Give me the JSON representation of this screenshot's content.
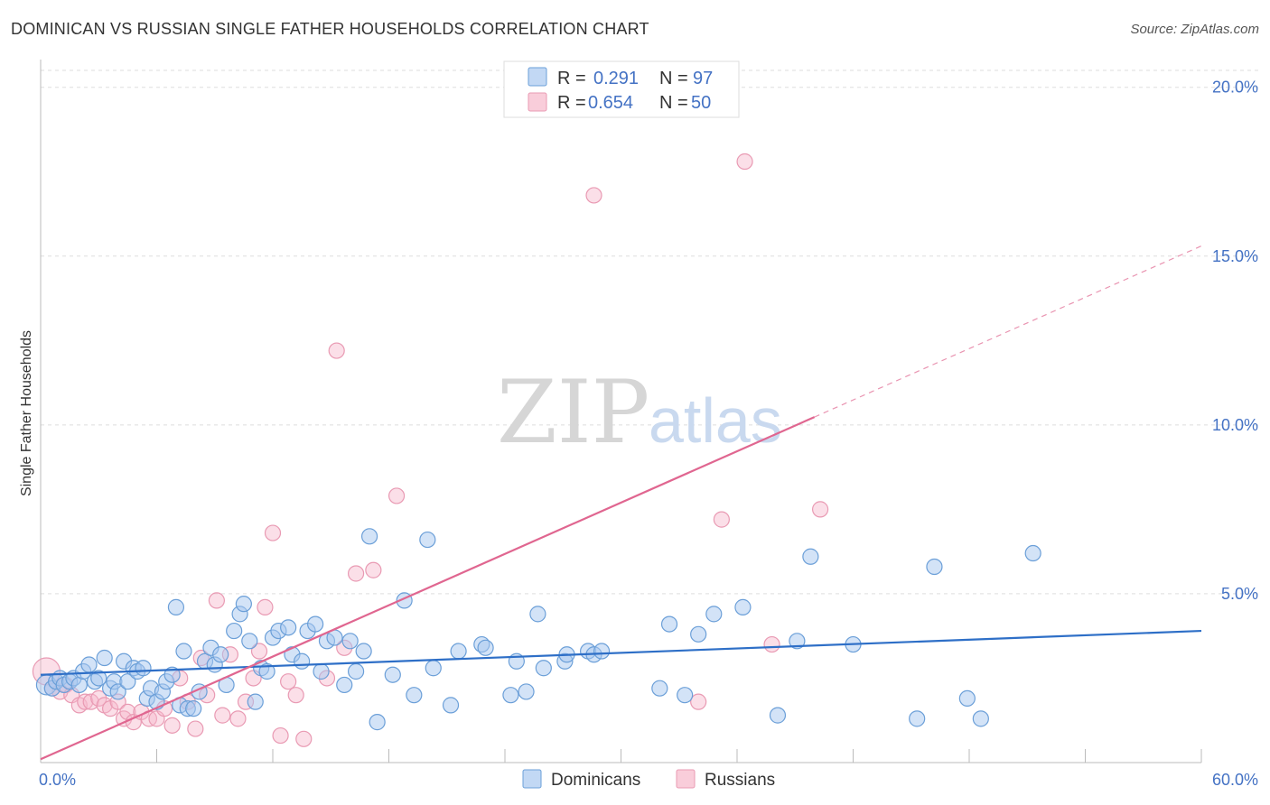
{
  "title": "DOMINICAN VS RUSSIAN SINGLE FATHER HOUSEHOLDS CORRELATION CHART",
  "source": "Source: ZipAtlas.com",
  "colors": {
    "dominicans_fill": "#a8c8f0",
    "dominicans_stroke": "#6b9fd8",
    "dominicans_line": "#2e6fc7",
    "russians_fill": "#f6b8cb",
    "russians_stroke": "#e99ab3",
    "russians_line": "#e06690",
    "grid": "#dddddd",
    "axis_text": "#4472c4"
  },
  "legend": {
    "r_label": "R =",
    "n_label": "N =",
    "dominicans": {
      "r": "0.291",
      "n": "97"
    },
    "russians": {
      "r": "0.654",
      "n": "50"
    }
  },
  "watermark": {
    "zip": "ZIP",
    "atlas": "atlas"
  },
  "chart_data": {
    "type": "scatter",
    "xlabel": "",
    "ylabel": "Single Father Households",
    "xlim": [
      0,
      60
    ],
    "ylim": [
      0,
      20.5
    ],
    "x_tick_labels": [
      {
        "value": 0,
        "label": "0.0%"
      },
      {
        "value": 60,
        "label": "60.0%"
      }
    ],
    "y_tick_labels": [
      {
        "value": 5,
        "label": "5.0%"
      },
      {
        "value": 10,
        "label": "10.0%"
      },
      {
        "value": 15,
        "label": "15.0%"
      },
      {
        "value": 20,
        "label": "20.0%"
      }
    ],
    "series": [
      {
        "name": "Dominicans",
        "trend": {
          "x0": 0,
          "y0": 2.6,
          "x1": 60,
          "y1": 3.9
        },
        "points": [
          [
            0.3,
            2.3
          ],
          [
            0.6,
            2.2
          ],
          [
            0.8,
            2.4
          ],
          [
            1.0,
            2.5
          ],
          [
            1.2,
            2.3
          ],
          [
            1.5,
            2.4
          ],
          [
            1.7,
            2.5
          ],
          [
            2.0,
            2.3
          ],
          [
            2.2,
            2.7
          ],
          [
            2.5,
            2.9
          ],
          [
            2.8,
            2.4
          ],
          [
            3.0,
            2.5
          ],
          [
            3.3,
            3.1
          ],
          [
            3.6,
            2.2
          ],
          [
            3.8,
            2.4
          ],
          [
            4.0,
            2.1
          ],
          [
            4.3,
            3.0
          ],
          [
            4.5,
            2.4
          ],
          [
            4.8,
            2.8
          ],
          [
            5.0,
            2.7
          ],
          [
            5.3,
            2.8
          ],
          [
            5.5,
            1.9
          ],
          [
            5.7,
            2.2
          ],
          [
            6.0,
            1.8
          ],
          [
            6.3,
            2.1
          ],
          [
            6.5,
            2.4
          ],
          [
            6.8,
            2.6
          ],
          [
            7.0,
            4.6
          ],
          [
            7.2,
            1.7
          ],
          [
            7.4,
            3.3
          ],
          [
            7.6,
            1.6
          ],
          [
            7.9,
            1.6
          ],
          [
            8.2,
            2.1
          ],
          [
            8.5,
            3.0
          ],
          [
            8.8,
            3.4
          ],
          [
            9.0,
            2.9
          ],
          [
            9.3,
            3.2
          ],
          [
            9.6,
            2.3
          ],
          [
            10.0,
            3.9
          ],
          [
            10.3,
            4.4
          ],
          [
            10.5,
            4.7
          ],
          [
            10.8,
            3.6
          ],
          [
            11.1,
            1.8
          ],
          [
            11.4,
            2.8
          ],
          [
            11.7,
            2.7
          ],
          [
            12.0,
            3.7
          ],
          [
            12.3,
            3.9
          ],
          [
            12.8,
            4.0
          ],
          [
            13.0,
            3.2
          ],
          [
            13.5,
            3.0
          ],
          [
            13.8,
            3.9
          ],
          [
            14.2,
            4.1
          ],
          [
            14.5,
            2.7
          ],
          [
            14.8,
            3.6
          ],
          [
            15.2,
            3.7
          ],
          [
            15.7,
            2.3
          ],
          [
            16.0,
            3.6
          ],
          [
            16.3,
            2.7
          ],
          [
            16.7,
            3.3
          ],
          [
            17.0,
            6.7
          ],
          [
            17.4,
            1.2
          ],
          [
            18.2,
            2.6
          ],
          [
            18.8,
            4.8
          ],
          [
            19.3,
            2.0
          ],
          [
            20.0,
            6.6
          ],
          [
            20.3,
            2.8
          ],
          [
            21.2,
            1.7
          ],
          [
            21.6,
            3.3
          ],
          [
            22.8,
            3.5
          ],
          [
            23.0,
            3.4
          ],
          [
            24.3,
            2.0
          ],
          [
            24.6,
            3.0
          ],
          [
            25.1,
            2.1
          ],
          [
            25.7,
            4.4
          ],
          [
            26.0,
            2.8
          ],
          [
            27.1,
            3.0
          ],
          [
            27.2,
            3.2
          ],
          [
            28.3,
            3.3
          ],
          [
            28.6,
            3.2
          ],
          [
            29.0,
            3.3
          ],
          [
            32.0,
            2.2
          ],
          [
            32.5,
            4.1
          ],
          [
            33.3,
            2.0
          ],
          [
            34.0,
            3.8
          ],
          [
            34.8,
            4.4
          ],
          [
            36.3,
            4.6
          ],
          [
            38.1,
            1.4
          ],
          [
            39.1,
            3.6
          ],
          [
            39.8,
            6.1
          ],
          [
            42.0,
            3.5
          ],
          [
            45.3,
            1.3
          ],
          [
            46.2,
            5.8
          ],
          [
            47.9,
            1.9
          ],
          [
            48.6,
            1.3
          ],
          [
            51.3,
            6.2
          ]
        ]
      },
      {
        "name": "Russians",
        "trend": {
          "x0": 0,
          "y0": 0.1,
          "x1": 60,
          "y1": 15.3,
          "solid_until_x": 40
        },
        "points": [
          [
            0.3,
            2.7
          ],
          [
            0.6,
            2.2
          ],
          [
            1.0,
            2.1
          ],
          [
            1.3,
            2.3
          ],
          [
            1.6,
            2.0
          ],
          [
            2.0,
            1.7
          ],
          [
            2.3,
            1.8
          ],
          [
            2.6,
            1.8
          ],
          [
            3.0,
            1.9
          ],
          [
            3.3,
            1.7
          ],
          [
            3.6,
            1.6
          ],
          [
            4.0,
            1.8
          ],
          [
            4.3,
            1.3
          ],
          [
            4.5,
            1.5
          ],
          [
            4.8,
            1.2
          ],
          [
            5.2,
            1.5
          ],
          [
            5.6,
            1.3
          ],
          [
            6.0,
            1.3
          ],
          [
            6.4,
            1.6
          ],
          [
            6.8,
            1.1
          ],
          [
            7.2,
            2.5
          ],
          [
            7.6,
            1.8
          ],
          [
            8.0,
            1.0
          ],
          [
            8.3,
            3.1
          ],
          [
            8.6,
            2.0
          ],
          [
            9.1,
            4.8
          ],
          [
            9.4,
            1.4
          ],
          [
            9.8,
            3.2
          ],
          [
            10.2,
            1.3
          ],
          [
            10.6,
            1.8
          ],
          [
            11.0,
            2.5
          ],
          [
            11.3,
            3.3
          ],
          [
            11.6,
            4.6
          ],
          [
            12.0,
            6.8
          ],
          [
            12.4,
            0.8
          ],
          [
            12.8,
            2.4
          ],
          [
            13.2,
            2.0
          ],
          [
            13.6,
            0.7
          ],
          [
            14.8,
            2.5
          ],
          [
            15.3,
            12.2
          ],
          [
            15.7,
            3.4
          ],
          [
            16.3,
            5.6
          ],
          [
            17.2,
            5.7
          ],
          [
            18.4,
            7.9
          ],
          [
            28.6,
            16.8
          ],
          [
            34.0,
            1.8
          ],
          [
            35.2,
            7.2
          ],
          [
            36.4,
            17.8
          ],
          [
            37.8,
            3.5
          ],
          [
            40.3,
            7.5
          ]
        ]
      }
    ]
  },
  "bottom_legend": [
    "Dominicans",
    "Russians"
  ]
}
